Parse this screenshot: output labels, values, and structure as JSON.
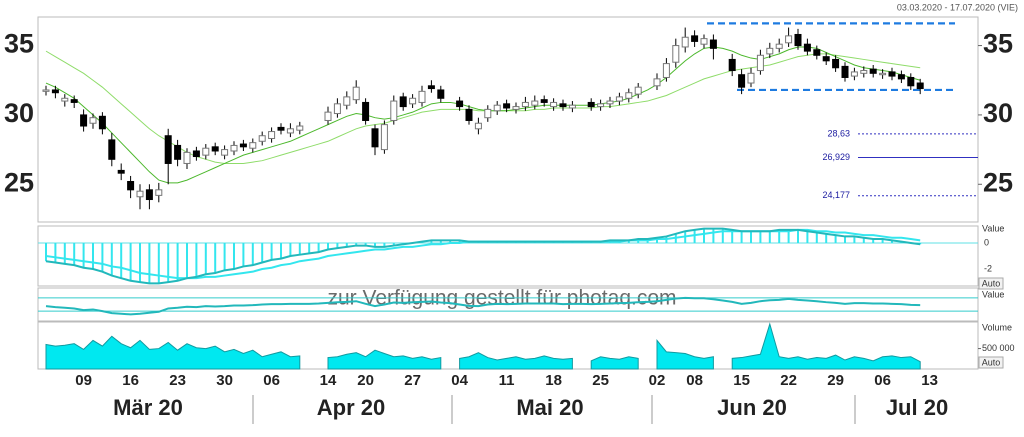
{
  "chart_data": [
    {
      "type": "candlestick",
      "subtitle": "03.03.2020 - 17.07.2020 (VIE)",
      "watermark": "zur Verfügung gestellt für photaq.com",
      "categories": [
        null,
        null,
        null,
        null,
        "09",
        null,
        null,
        null,
        null,
        "16",
        null,
        null,
        null,
        null,
        "23",
        null,
        null,
        null,
        null,
        "30",
        null,
        null,
        null,
        null,
        "06",
        null,
        null,
        null,
        null,
        null,
        "14",
        null,
        null,
        null,
        "20",
        null,
        null,
        null,
        null,
        "27",
        null,
        null,
        null,
        null,
        "04",
        null,
        null,
        null,
        null,
        "11",
        null,
        null,
        null,
        null,
        "18",
        null,
        null,
        null,
        null,
        "25",
        null,
        null,
        null,
        null,
        null,
        "02",
        null,
        null,
        null,
        "08",
        null,
        null,
        null,
        null,
        "15",
        null,
        null,
        null,
        null,
        "22",
        null,
        null,
        null,
        null,
        "29",
        null,
        null,
        null,
        null,
        "06",
        null,
        null,
        null,
        null,
        "13"
      ],
      "x_group_labels": [
        "Mär 20",
        "Apr 20",
        "Mai 20",
        "Jun 20",
        "Jul 20"
      ],
      "open": [
        31.7,
        31.8,
        31.0,
        31.1,
        30.0,
        29.4,
        29.9,
        28.2,
        26.0,
        25.2,
        24.1,
        24.6,
        24.2,
        28.5,
        27.8,
        26.5,
        27.4,
        27.1,
        27.7,
        27.1,
        27.4,
        27.9,
        27.6,
        28.1,
        28.3,
        29.1,
        28.7,
        28.9,
        null,
        null,
        29.6,
        30.1,
        30.7,
        31.1,
        30.9,
        29.0,
        27.5,
        29.6,
        31.3,
        30.8,
        30.9,
        32.1,
        31.8,
        null,
        31.0,
        30.4,
        29.0,
        29.8,
        30.3,
        30.8,
        30.4,
        30.6,
        30.7,
        31.1,
        30.6,
        30.8,
        30.5,
        null,
        30.9,
        30.6,
        30.8,
        31.0,
        31.2,
        31.5,
        null,
        32.1,
        32.7,
        33.8,
        34.9,
        35.7,
        35.1,
        35.4,
        null,
        34.0,
        32.9,
        32.3,
        33.2,
        34.4,
        34.8,
        35.2,
        35.8,
        35.1,
        34.7,
        34.2,
        34.0,
        33.5,
        32.8,
        33.0,
        33.3,
        32.9,
        33.1,
        32.9,
        32.7,
        32.3,
        null
      ],
      "high": [
        32.1,
        32.1,
        31.5,
        31.4,
        30.4,
        30.1,
        30.2,
        28.7,
        26.5,
        25.6,
        25.0,
        25.0,
        25.1,
        29.0,
        28.2,
        27.6,
        27.7,
        27.9,
        28.0,
        27.8,
        28.1,
        28.2,
        28.3,
        28.8,
        29.1,
        29.4,
        29.4,
        29.5,
        null,
        null,
        30.6,
        31.2,
        31.7,
        32.5,
        31.2,
        29.3,
        29.6,
        31.4,
        31.6,
        31.5,
        32.1,
        32.5,
        32.1,
        null,
        31.3,
        30.7,
        29.8,
        30.7,
        31.0,
        31.1,
        30.9,
        31.3,
        31.4,
        31.4,
        31.2,
        31.1,
        31.0,
        null,
        31.2,
        31.1,
        31.3,
        31.6,
        31.9,
        32.3,
        null,
        33.0,
        34.1,
        35.5,
        36.3,
        36.1,
        35.8,
        35.8,
        null,
        34.4,
        33.3,
        33.4,
        34.7,
        35.2,
        35.5,
        36.3,
        36.2,
        35.5,
        35.0,
        34.5,
        34.3,
        33.8,
        33.4,
        33.5,
        33.6,
        33.3,
        33.4,
        33.2,
        33.0,
        32.6,
        null
      ],
      "low": [
        31.4,
        31.2,
        30.6,
        30.5,
        28.8,
        29.0,
        28.6,
        26.3,
        25.3,
        24.0,
        23.2,
        23.2,
        23.7,
        25.0,
        26.3,
        26.1,
        26.7,
        26.8,
        27.1,
        26.8,
        27.1,
        27.4,
        27.3,
        27.8,
        28.0,
        28.6,
        28.4,
        28.6,
        null,
        null,
        29.3,
        29.8,
        30.4,
        30.8,
        29.3,
        27.1,
        27.2,
        29.3,
        30.3,
        30.5,
        30.6,
        31.6,
        30.9,
        null,
        30.3,
        29.3,
        28.6,
        29.5,
        30.0,
        30.2,
        30.1,
        30.3,
        30.4,
        30.6,
        30.3,
        30.3,
        30.2,
        null,
        30.3,
        30.3,
        30.5,
        30.7,
        30.9,
        31.2,
        null,
        31.8,
        32.4,
        33.4,
        34.5,
        34.9,
        34.8,
        34.0,
        null,
        32.8,
        31.5,
        32.0,
        32.9,
        34.1,
        34.5,
        34.9,
        34.7,
        34.3,
        34.0,
        33.6,
        33.1,
        32.4,
        32.5,
        32.7,
        32.7,
        32.6,
        32.5,
        32.3,
        31.8,
        31.5,
        null
      ],
      "close": [
        31.8,
        31.6,
        31.2,
        30.9,
        29.2,
        29.8,
        29.0,
        26.8,
        25.8,
        24.6,
        24.5,
        23.9,
        24.6,
        26.5,
        26.8,
        27.3,
        27.0,
        27.6,
        27.4,
        27.5,
        27.8,
        27.7,
        28.0,
        28.5,
        28.8,
        28.9,
        29.0,
        29.2,
        null,
        null,
        30.2,
        30.8,
        31.3,
        32.0,
        29.6,
        27.7,
        29.3,
        31.0,
        30.6,
        31.2,
        31.7,
        31.9,
        31.2,
        null,
        30.6,
        29.6,
        29.4,
        30.4,
        30.7,
        30.5,
        30.6,
        30.9,
        31.0,
        30.9,
        30.9,
        30.6,
        30.7,
        null,
        30.6,
        30.8,
        31.0,
        31.3,
        31.6,
        32.0,
        null,
        32.6,
        33.7,
        35.0,
        35.6,
        35.3,
        35.5,
        34.8,
        null,
        33.2,
        32.0,
        33.0,
        34.3,
        34.8,
        35.1,
        35.7,
        35.0,
        34.6,
        34.3,
        33.9,
        33.4,
        32.7,
        33.1,
        33.2,
        33.0,
        33.0,
        32.8,
        32.6,
        32.1,
        31.9,
        null
      ],
      "up_color": "#ffffff",
      "down_color": "#000000",
      "ma_lines": [
        {
          "color": "#8fdc6a",
          "values": [
            34.6,
            34.2,
            33.8,
            33.4,
            33.0,
            32.5,
            32.0,
            31.4,
            30.8,
            30.2,
            29.6,
            29.0,
            28.5,
            28.1,
            27.7,
            27.3,
            27.0,
            26.8,
            26.6,
            26.5,
            26.5,
            26.5,
            26.6,
            26.7,
            26.9,
            27.1,
            27.3,
            27.5,
            27.7,
            27.9,
            28.1,
            28.4,
            28.7,
            29.0,
            29.2,
            29.3,
            29.4,
            29.6,
            29.8,
            30.0,
            30.2,
            30.3,
            30.4,
            30.4,
            30.4,
            30.4,
            30.3,
            30.3,
            30.3,
            30.3,
            30.3,
            30.3,
            30.4,
            30.4,
            30.5,
            30.5,
            30.5,
            30.5,
            30.5,
            30.6,
            30.6,
            30.7,
            30.8,
            30.9,
            31.0,
            31.2,
            31.4,
            31.7,
            32.0,
            32.3,
            32.6,
            32.8,
            33.0,
            33.2,
            33.3,
            33.4,
            33.5,
            33.6,
            33.8,
            34.0,
            34.2,
            34.3,
            34.4,
            34.4,
            34.3,
            34.2,
            34.1,
            34.0,
            33.9,
            33.8,
            33.7,
            33.6,
            33.5,
            33.4,
            null
          ]
        },
        {
          "color": "#4cb82c",
          "values": [
            32.3,
            32.0,
            31.6,
            31.2,
            30.6,
            30.0,
            29.4,
            28.7,
            28.0,
            27.3,
            26.6,
            25.9,
            25.3,
            25.1,
            25.1,
            25.3,
            25.6,
            25.9,
            26.2,
            26.5,
            26.8,
            27.1,
            27.3,
            27.5,
            27.7,
            27.9,
            28.1,
            28.4,
            28.7,
            29.0,
            29.3,
            29.6,
            29.9,
            30.1,
            30.0,
            29.8,
            29.7,
            29.8,
            30.0,
            30.2,
            30.5,
            30.8,
            30.9,
            30.9,
            30.8,
            30.6,
            30.4,
            30.3,
            30.3,
            30.3,
            30.4,
            30.5,
            30.6,
            30.7,
            30.7,
            30.7,
            30.7,
            30.7,
            30.7,
            30.8,
            30.9,
            31.0,
            31.2,
            31.5,
            31.8,
            32.2,
            32.7,
            33.3,
            33.9,
            34.4,
            34.8,
            34.9,
            34.8,
            34.6,
            34.3,
            34.1,
            34.0,
            34.2,
            34.4,
            34.7,
            34.9,
            34.9,
            34.8,
            34.5,
            34.2,
            33.9,
            33.6,
            33.4,
            33.3,
            33.2,
            33.1,
            32.9,
            32.7,
            32.5,
            null
          ]
        }
      ],
      "range_lines": [
        36.6,
        31.8
      ],
      "range_color": "#1e7be0",
      "levels": [
        {
          "value": 28.63,
          "label": "28,63",
          "style": "dotted"
        },
        {
          "value": 26.929,
          "label": "26,929",
          "style": "solid"
        },
        {
          "value": 24.177,
          "label": "24,177",
          "style": "dotted"
        }
      ],
      "level_color": "#3030c0",
      "ylim": [
        22.28,
        37.06
      ],
      "yticks": [
        25,
        30,
        35
      ]
    },
    {
      "type": "macd",
      "axis_label": "Value",
      "button": "Auto",
      "color": "#33e6ee",
      "line_color": "#22b8bb",
      "values": [
        -1.4,
        -1.5,
        -1.6,
        -1.7,
        -1.9,
        -2.0,
        -2.2,
        -2.5,
        -2.7,
        -2.9,
        -3.0,
        -3.1,
        -3.1,
        -3.0,
        -2.9,
        -2.7,
        -2.6,
        -2.4,
        -2.3,
        -2.1,
        -2.0,
        -1.8,
        -1.7,
        -1.5,
        -1.3,
        -1.2,
        -1.0,
        -0.9,
        -0.8,
        -0.7,
        -0.5,
        -0.4,
        -0.3,
        -0.2,
        -0.2,
        -0.3,
        -0.3,
        -0.2,
        -0.1,
        0.0,
        0.1,
        0.2,
        0.2,
        0.2,
        0.2,
        0.1,
        0.1,
        0.1,
        0.1,
        0.1,
        0.1,
        0.1,
        0.1,
        0.1,
        0.1,
        0.1,
        0.1,
        0.1,
        0.1,
        0.1,
        0.2,
        0.2,
        0.2,
        0.3,
        0.3,
        0.4,
        0.5,
        0.7,
        0.9,
        1.0,
        1.1,
        1.1,
        1.1,
        1.0,
        0.9,
        0.9,
        0.9,
        0.9,
        1.0,
        1.0,
        1.0,
        0.9,
        0.8,
        0.7,
        0.6,
        0.5,
        0.5,
        0.4,
        0.3,
        0.3,
        0.2,
        0.1,
        0.0,
        -0.1,
        null
      ],
      "signal": [
        -1.0,
        -1.1,
        -1.2,
        -1.3,
        -1.4,
        -1.5,
        -1.6,
        -1.8,
        -1.9,
        -2.1,
        -2.3,
        -2.4,
        -2.5,
        -2.6,
        -2.7,
        -2.7,
        -2.7,
        -2.6,
        -2.6,
        -2.5,
        -2.4,
        -2.3,
        -2.2,
        -2.0,
        -1.9,
        -1.7,
        -1.6,
        -1.4,
        -1.3,
        -1.2,
        -1.0,
        -0.9,
        -0.8,
        -0.7,
        -0.6,
        -0.5,
        -0.5,
        -0.4,
        -0.3,
        -0.3,
        -0.2,
        -0.1,
        -0.1,
        0.0,
        0.0,
        0.1,
        0.1,
        0.1,
        0.1,
        0.1,
        0.1,
        0.1,
        0.1,
        0.1,
        0.1,
        0.1,
        0.1,
        0.1,
        0.1,
        0.1,
        0.1,
        0.1,
        0.2,
        0.2,
        0.2,
        0.3,
        0.3,
        0.4,
        0.5,
        0.6,
        0.7,
        0.8,
        0.9,
        0.9,
        0.9,
        0.9,
        0.9,
        0.9,
        0.9,
        0.9,
        1.0,
        1.0,
        0.9,
        0.9,
        0.8,
        0.8,
        0.7,
        0.6,
        0.6,
        0.5,
        0.4,
        0.4,
        0.3,
        0.2,
        null
      ],
      "ylim": [
        -3.3,
        1.3
      ],
      "yticks": [
        0,
        -2
      ]
    },
    {
      "type": "line",
      "axis_label": "Value",
      "color": "#22b8bb",
      "levels": [
        70,
        30
      ],
      "values": [
        45,
        42,
        40,
        38,
        33,
        35,
        30,
        24,
        22,
        20,
        22,
        25,
        28,
        38,
        40,
        43,
        42,
        45,
        44,
        45,
        47,
        47,
        48,
        50,
        51,
        51,
        52,
        52,
        52,
        53,
        55,
        57,
        58,
        60,
        52,
        45,
        50,
        56,
        55,
        57,
        58,
        59,
        56,
        54,
        50,
        46,
        45,
        50,
        52,
        51,
        52,
        53,
        53,
        53,
        53,
        51,
        52,
        52,
        51,
        52,
        53,
        54,
        55,
        57,
        58,
        60,
        64,
        68,
        70,
        69,
        69,
        66,
        62,
        58,
        52,
        55,
        60,
        63,
        64,
        67,
        64,
        62,
        60,
        57,
        55,
        52,
        54,
        54,
        53,
        53,
        52,
        51,
        49,
        48,
        null
      ],
      "ylim": [
        0,
        100
      ]
    },
    {
      "type": "area",
      "axis_label": "Volume",
      "button": "Auto",
      "color": "#00e8f0",
      "line_color": "#119aa0",
      "values": [
        600000,
        560000,
        580000,
        620000,
        480000,
        700000,
        560000,
        800000,
        620000,
        520000,
        700000,
        480000,
        500000,
        650000,
        460000,
        620000,
        520000,
        500000,
        560000,
        420000,
        480000,
        380000,
        460000,
        300000,
        360000,
        420000,
        300000,
        320000,
        null,
        null,
        280000,
        300000,
        360000,
        400000,
        300000,
        460000,
        380000,
        300000,
        320000,
        260000,
        300000,
        240000,
        280000,
        null,
        260000,
        300000,
        400000,
        280000,
        220000,
        260000,
        300000,
        240000,
        260000,
        320000,
        260000,
        240000,
        260000,
        null,
        200000,
        300000,
        260000,
        240000,
        300000,
        260000,
        null,
        700000,
        420000,
        400000,
        380000,
        300000,
        260000,
        300000,
        null,
        260000,
        280000,
        320000,
        360000,
        1100000,
        300000,
        260000,
        300000,
        240000,
        280000,
        260000,
        340000,
        220000,
        300000,
        260000,
        200000,
        300000,
        320000,
        280000,
        300000,
        180000,
        null
      ],
      "ylim": [
        0,
        1150000
      ],
      "yticks": [
        {
          "value": 500000,
          "label": "500 000"
        }
      ]
    }
  ]
}
